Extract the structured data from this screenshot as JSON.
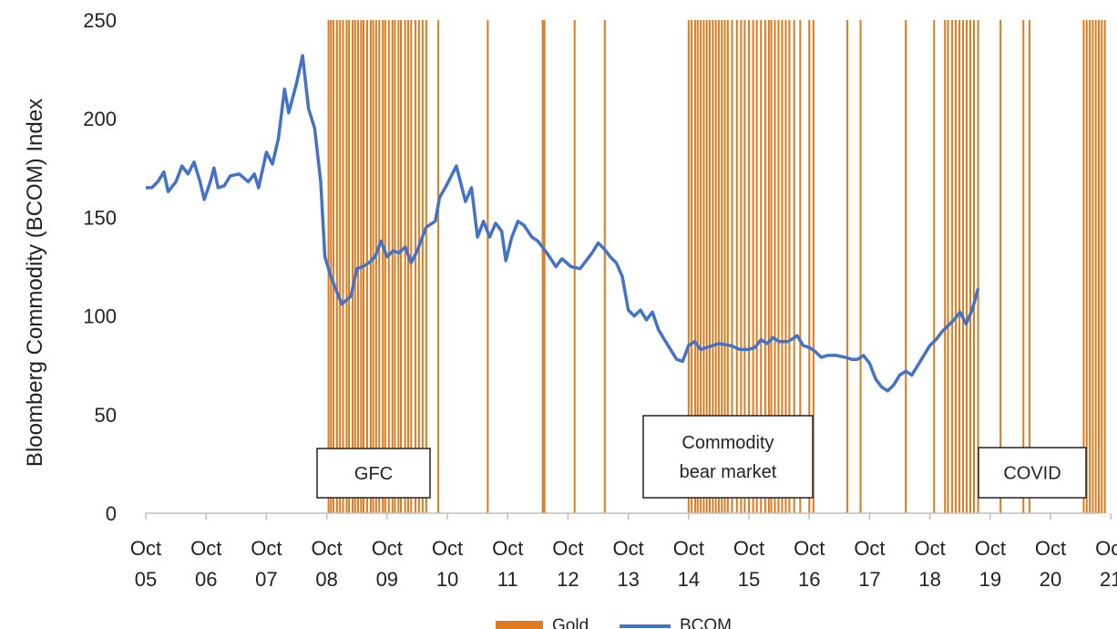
{
  "chart_data": {
    "type": "line",
    "ylabel": "Bloomberg Commodity (BCOM) Index",
    "xlabel": "",
    "ylim": [
      0,
      250
    ],
    "yticks": [
      0,
      50,
      100,
      150,
      200,
      250
    ],
    "xlim": [
      2005.75,
      2021.55
    ],
    "xticks": [
      {
        "x": 2005.75,
        "l1": "Oct",
        "l2": "05"
      },
      {
        "x": 2006.75,
        "l1": "Oct",
        "l2": "06"
      },
      {
        "x": 2007.75,
        "l1": "Oct",
        "l2": "07"
      },
      {
        "x": 2008.75,
        "l1": "Oct",
        "l2": "08"
      },
      {
        "x": 2009.75,
        "l1": "Oct",
        "l2": "09"
      },
      {
        "x": 2010.75,
        "l1": "Oct",
        "l2": "10"
      },
      {
        "x": 2011.75,
        "l1": "Oct",
        "l2": "11"
      },
      {
        "x": 2012.75,
        "l1": "Oct",
        "l2": "12"
      },
      {
        "x": 2013.75,
        "l1": "Oct",
        "l2": "13"
      },
      {
        "x": 2014.75,
        "l1": "Oct",
        "l2": "14"
      },
      {
        "x": 2015.75,
        "l1": "Oct",
        "l2": "15"
      },
      {
        "x": 2016.75,
        "l1": "Oct",
        "l2": "16"
      },
      {
        "x": 2017.75,
        "l1": "Oct",
        "l2": "17"
      },
      {
        "x": 2018.75,
        "l1": "Oct",
        "l2": "18"
      },
      {
        "x": 2019.75,
        "l1": "Oct",
        "l2": "19"
      },
      {
        "x": 2020.75,
        "l1": "Oct",
        "l2": "20"
      },
      {
        "x": 2021.75,
        "l1": "Oct",
        "l2": "21"
      }
    ],
    "grid": false,
    "legend_position": "bottom",
    "series": [
      {
        "name": "BCOM",
        "color": "#4472C4",
        "points": [
          [
            2005.75,
            165
          ],
          [
            2005.85,
            165
          ],
          [
            2005.95,
            168
          ],
          [
            2006.05,
            173
          ],
          [
            2006.12,
            163
          ],
          [
            2006.25,
            168
          ],
          [
            2006.35,
            176
          ],
          [
            2006.45,
            172
          ],
          [
            2006.55,
            178
          ],
          [
            2006.65,
            168
          ],
          [
            2006.72,
            159
          ],
          [
            2006.82,
            168
          ],
          [
            2006.88,
            175
          ],
          [
            2006.95,
            165
          ],
          [
            2007.05,
            166
          ],
          [
            2007.15,
            171
          ],
          [
            2007.3,
            172
          ],
          [
            2007.45,
            168
          ],
          [
            2007.55,
            172
          ],
          [
            2007.62,
            165
          ],
          [
            2007.75,
            183
          ],
          [
            2007.85,
            177
          ],
          [
            2007.95,
            190
          ],
          [
            2008.05,
            215
          ],
          [
            2008.12,
            203
          ],
          [
            2008.25,
            218
          ],
          [
            2008.35,
            232
          ],
          [
            2008.45,
            205
          ],
          [
            2008.55,
            195
          ],
          [
            2008.65,
            168
          ],
          [
            2008.72,
            130
          ],
          [
            2008.82,
            120
          ],
          [
            2008.92,
            112
          ],
          [
            2009.0,
            106
          ],
          [
            2009.15,
            110
          ],
          [
            2009.25,
            124
          ],
          [
            2009.35,
            125
          ],
          [
            2009.45,
            127
          ],
          [
            2009.55,
            130
          ],
          [
            2009.65,
            138
          ],
          [
            2009.75,
            130
          ],
          [
            2009.85,
            133
          ],
          [
            2009.95,
            132
          ],
          [
            2010.05,
            135
          ],
          [
            2010.15,
            127
          ],
          [
            2010.25,
            133
          ],
          [
            2010.4,
            145
          ],
          [
            2010.55,
            148
          ],
          [
            2010.62,
            160
          ],
          [
            2010.75,
            167
          ],
          [
            2010.9,
            176
          ],
          [
            2011.05,
            158
          ],
          [
            2011.15,
            165
          ],
          [
            2011.25,
            140
          ],
          [
            2011.35,
            148
          ],
          [
            2011.45,
            140
          ],
          [
            2011.55,
            147
          ],
          [
            2011.65,
            143
          ],
          [
            2011.72,
            128
          ],
          [
            2011.82,
            140
          ],
          [
            2011.92,
            148
          ],
          [
            2012.02,
            146
          ],
          [
            2012.15,
            140
          ],
          [
            2012.25,
            138
          ],
          [
            2012.4,
            132
          ],
          [
            2012.55,
            125
          ],
          [
            2012.65,
            129
          ],
          [
            2012.8,
            125
          ],
          [
            2012.95,
            124
          ],
          [
            2013.15,
            132
          ],
          [
            2013.25,
            137
          ],
          [
            2013.35,
            134
          ],
          [
            2013.45,
            130
          ],
          [
            2013.55,
            127
          ],
          [
            2013.65,
            120
          ],
          [
            2013.75,
            103
          ],
          [
            2013.85,
            100
          ],
          [
            2013.95,
            103
          ],
          [
            2014.05,
            98
          ],
          [
            2014.15,
            102
          ],
          [
            2014.25,
            93
          ],
          [
            2014.35,
            88
          ],
          [
            2014.45,
            83
          ],
          [
            2014.55,
            78
          ],
          [
            2014.65,
            77
          ],
          [
            2014.75,
            85
          ],
          [
            2014.85,
            87
          ],
          [
            2014.95,
            83
          ],
          [
            2015.05,
            84
          ],
          [
            2015.25,
            86
          ],
          [
            2015.45,
            85
          ],
          [
            2015.6,
            83
          ],
          [
            2015.75,
            83
          ],
          [
            2015.85,
            84
          ],
          [
            2015.95,
            88
          ],
          [
            2016.05,
            86
          ],
          [
            2016.15,
            89
          ],
          [
            2016.25,
            87
          ],
          [
            2016.4,
            87
          ],
          [
            2016.55,
            90
          ],
          [
            2016.65,
            85
          ],
          [
            2016.75,
            84
          ],
          [
            2016.85,
            82
          ],
          [
            2016.95,
            79
          ],
          [
            2017.05,
            80
          ],
          [
            2017.2,
            80
          ],
          [
            2017.35,
            79
          ],
          [
            2017.45,
            78
          ],
          [
            2017.55,
            78
          ],
          [
            2017.65,
            80
          ],
          [
            2017.75,
            76
          ],
          [
            2017.85,
            68
          ],
          [
            2017.95,
            64
          ],
          [
            2018.05,
            62
          ],
          [
            2018.15,
            65
          ],
          [
            2018.25,
            70
          ],
          [
            2018.35,
            72
          ],
          [
            2018.45,
            70
          ],
          [
            2018.55,
            75
          ],
          [
            2018.65,
            80
          ],
          [
            2018.75,
            85
          ],
          [
            2018.85,
            88
          ],
          [
            2018.95,
            92
          ],
          [
            2019.05,
            95
          ],
          [
            2019.15,
            98
          ],
          [
            2019.25,
            102
          ],
          [
            2019.35,
            96
          ],
          [
            2019.45,
            103
          ],
          [
            2019.55,
            114
          ]
        ]
      },
      {
        "name": "Gold",
        "color": "#E07A1F"
      }
    ],
    "gold_lines": [
      2008.78,
      2008.82,
      2008.86,
      2008.92,
      2008.97,
      2009.02,
      2009.08,
      2009.12,
      2009.18,
      2009.22,
      2009.27,
      2009.32,
      2009.36,
      2009.42,
      2009.48,
      2009.52,
      2009.57,
      2009.62,
      2009.68,
      2009.72,
      2009.78,
      2009.84,
      2009.88,
      2009.94,
      2009.98,
      2010.05,
      2010.1,
      2010.15,
      2010.22,
      2010.28,
      2010.34,
      2010.4,
      2010.6,
      2011.42,
      2012.33,
      2012.36,
      2012.86,
      2013.36,
      2014.75,
      2014.8,
      2014.86,
      2014.9,
      2014.95,
      2015.0,
      2015.05,
      2015.1,
      2015.15,
      2015.2,
      2015.25,
      2015.3,
      2015.35,
      2015.4,
      2015.47,
      2015.55,
      2015.62,
      2015.68,
      2015.75,
      2015.82,
      2015.88,
      2015.95,
      2016.02,
      2016.08,
      2016.12,
      2016.18,
      2016.24,
      2016.3,
      2016.36,
      2016.42,
      2016.5,
      2016.6,
      2016.75,
      2016.82,
      2017.38,
      2017.6,
      2018.35,
      2018.82,
      2019.0,
      2019.05,
      2019.12,
      2019.18,
      2019.24,
      2019.3,
      2019.36,
      2019.42,
      2019.48,
      2019.55,
      2019.92,
      2020.3,
      2020.4,
      2021.3,
      2021.35,
      2021.4,
      2021.45,
      2021.5,
      2021.55,
      2021.6,
      2021.65
    ],
    "annotations": [
      {
        "id": "gfc",
        "lines": [
          "GFC"
        ]
      },
      {
        "id": "commodity",
        "lines": [
          "Commodity",
          "bear market"
        ]
      },
      {
        "id": "covid",
        "lines": [
          "COVID"
        ]
      }
    ],
    "legend": [
      {
        "name": "Gold",
        "color": "#E07A1F"
      },
      {
        "name": "BCOM",
        "color": "#4472C4"
      }
    ]
  }
}
